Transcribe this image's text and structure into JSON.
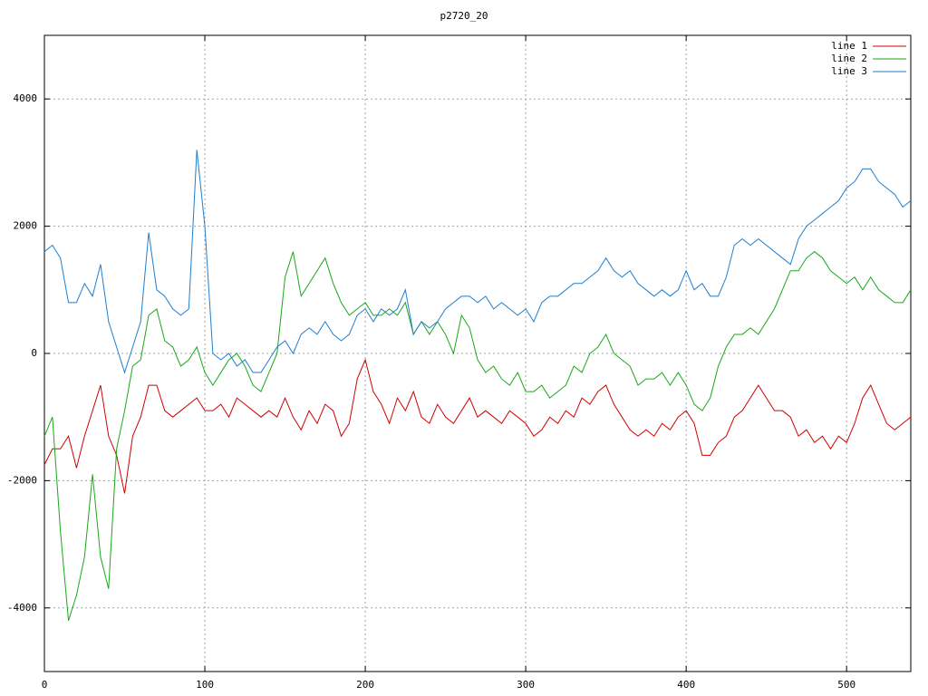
{
  "chart_data": {
    "type": "line",
    "title": "p2720_20",
    "x": [
      0,
      5,
      10,
      15,
      20,
      25,
      30,
      35,
      40,
      45,
      50,
      55,
      60,
      65,
      70,
      75,
      80,
      85,
      90,
      95,
      100,
      105,
      110,
      115,
      120,
      125,
      130,
      135,
      140,
      145,
      150,
      155,
      160,
      165,
      170,
      175,
      180,
      185,
      190,
      195,
      200,
      205,
      210,
      215,
      220,
      225,
      230,
      235,
      240,
      245,
      250,
      255,
      260,
      265,
      270,
      275,
      280,
      285,
      290,
      295,
      300,
      305,
      310,
      315,
      320,
      325,
      330,
      335,
      340,
      345,
      350,
      355,
      360,
      365,
      370,
      375,
      380,
      385,
      390,
      395,
      400,
      405,
      410,
      415,
      420,
      425,
      430,
      435,
      440,
      445,
      450,
      455,
      460,
      465,
      470,
      475,
      480,
      485,
      490,
      495,
      500,
      505,
      510,
      515,
      520,
      525,
      530,
      535,
      540
    ],
    "series": [
      {
        "name": "line 1",
        "color": "#d00000",
        "values": [
          -1750,
          -1500,
          -1500,
          -1300,
          -1800,
          -1300,
          -900,
          -500,
          -1300,
          -1600,
          -2200,
          -1300,
          -1000,
          -500,
          -500,
          -900,
          -1000,
          -900,
          -800,
          -700,
          -900,
          -900,
          -800,
          -1000,
          -700,
          -800,
          -900,
          -1000,
          -900,
          -1000,
          -700,
          -1000,
          -1200,
          -900,
          -1100,
          -800,
          -900,
          -1300,
          -1100,
          -400,
          -100,
          -600,
          -800,
          -1100,
          -700,
          -900,
          -600,
          -1000,
          -1100,
          -800,
          -1000,
          -1100,
          -900,
          -700,
          -1000,
          -900,
          -1000,
          -1100,
          -900,
          -1000,
          -1100,
          -1300,
          -1200,
          -1000,
          -1100,
          -900,
          -1000,
          -700,
          -800,
          -600,
          -500,
          -800,
          -1000,
          -1200,
          -1300,
          -1200,
          -1300,
          -1100,
          -1200,
          -1000,
          -900,
          -1100,
          -1600,
          -1600,
          -1400,
          -1300,
          -1000,
          -900,
          -700,
          -500,
          -700,
          -900,
          -900,
          -1000,
          -1300,
          -1200,
          -1400,
          -1300,
          -1500,
          -1300,
          -1400,
          -1100,
          -700,
          -500,
          -800,
          -1100,
          -1200,
          -1100,
          -1000
        ]
      },
      {
        "name": "line 2",
        "color": "#1aa81a",
        "values": [
          -1300,
          -1000,
          -2800,
          -4200,
          -3800,
          -3200,
          -1900,
          -3200,
          -3700,
          -1500,
          -900,
          -200,
          -100,
          600,
          700,
          200,
          100,
          -200,
          -100,
          100,
          -300,
          -500,
          -300,
          -100,
          0,
          -200,
          -500,
          -600,
          -300,
          0,
          1200,
          1600,
          900,
          1100,
          1300,
          1500,
          1100,
          800,
          600,
          700,
          800,
          600,
          600,
          700,
          600,
          800,
          300,
          500,
          300,
          500,
          300,
          0,
          600,
          400,
          -100,
          -300,
          -200,
          -400,
          -500,
          -300,
          -600,
          -600,
          -500,
          -700,
          -600,
          -500,
          -200,
          -300,
          0,
          100,
          300,
          0,
          -100,
          -200,
          -500,
          -400,
          -400,
          -300,
          -500,
          -300,
          -500,
          -800,
          -900,
          -700,
          -200,
          100,
          300,
          300,
          400,
          300,
          500,
          700,
          1000,
          1300,
          1300,
          1500,
          1600,
          1500,
          1300,
          1200,
          1100,
          1200,
          1000,
          1200,
          1000,
          900,
          800,
          800,
          1000
        ]
      },
      {
        "name": "line 3",
        "color": "#1f7fcf",
        "values": [
          1600,
          1700,
          1500,
          800,
          800,
          1100,
          900,
          1400,
          500,
          100,
          -300,
          100,
          500,
          1900,
          1000,
          900,
          700,
          600,
          700,
          3200,
          2000,
          0,
          -100,
          0,
          -200,
          -100,
          -300,
          -300,
          -100,
          100,
          200,
          0,
          300,
          400,
          300,
          500,
          300,
          200,
          300,
          600,
          700,
          500,
          700,
          600,
          700,
          1000,
          300,
          500,
          400,
          500,
          700,
          800,
          900,
          900,
          800,
          900,
          700,
          800,
          700,
          600,
          700,
          500,
          800,
          900,
          900,
          1000,
          1100,
          1100,
          1200,
          1300,
          1500,
          1300,
          1200,
          1300,
          1100,
          1000,
          900,
          1000,
          900,
          1000,
          1300,
          1000,
          1100,
          900,
          900,
          1200,
          1700,
          1800,
          1700,
          1800,
          1700,
          1600,
          1500,
          1400,
          1800,
          2000,
          2100,
          2200,
          2300,
          2400,
          2600,
          2700,
          2900,
          2900,
          2700,
          2600,
          2500,
          2300,
          2400
        ]
      }
    ],
    "xlim": [
      0,
      540
    ],
    "xticks": [
      0,
      100,
      200,
      300,
      400,
      500
    ],
    "ylim": [
      -5000,
      5000
    ],
    "yticks": [
      -4000,
      -2000,
      0,
      2000,
      4000
    ],
    "grid": true,
    "legend": "top-right"
  }
}
